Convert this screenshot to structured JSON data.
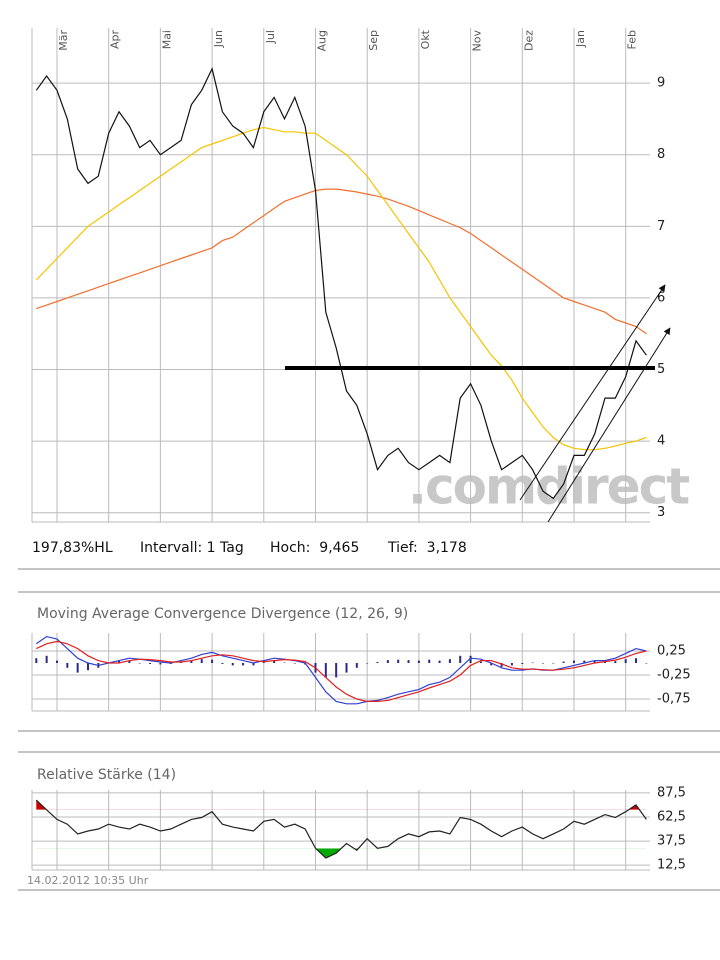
{
  "chart_data": [
    {
      "type": "line",
      "categories": [
        null,
        null,
        "Mär",
        null,
        null,
        null,
        null,
        "Apr",
        null,
        null,
        null,
        null,
        "Mai",
        null,
        null,
        null,
        null,
        "Jun",
        null,
        null,
        null,
        null,
        "Jul",
        null,
        null,
        null,
        null,
        "Aug",
        null,
        null,
        null,
        null,
        "Sep",
        null,
        null,
        null,
        null,
        "Okt",
        null,
        null,
        null,
        null,
        "Nov",
        null,
        null,
        null,
        null,
        "Dez",
        null,
        null,
        null,
        null,
        "Jan",
        null,
        null,
        null,
        null,
        "Feb",
        null,
        null
      ],
      "series": [
        {
          "color": "#f07030",
          "values": [
            5.85,
            5.9,
            5.95,
            6.0,
            6.05,
            6.1,
            6.15,
            6.2,
            6.25,
            6.3,
            6.35,
            6.4,
            6.45,
            6.5,
            6.55,
            6.6,
            6.65,
            6.7,
            6.8,
            6.85,
            6.95,
            7.05,
            7.15,
            7.25,
            7.35,
            7.4,
            7.45,
            7.5,
            7.52,
            7.52,
            7.5,
            7.48,
            7.45,
            7.42,
            7.38,
            7.33,
            7.28,
            7.22,
            7.16,
            7.1,
            7.04,
            6.98,
            6.9,
            6.8,
            6.7,
            6.6,
            6.5,
            6.4,
            6.3,
            6.2,
            6.1,
            6.0,
            5.95,
            5.9,
            5.85,
            5.8,
            5.7,
            5.65,
            5.6,
            5.5
          ]
        },
        {
          "color": "#f5c400",
          "values": [
            6.25,
            6.4,
            6.55,
            6.7,
            6.85,
            7.0,
            7.1,
            7.2,
            7.3,
            7.4,
            7.5,
            7.6,
            7.7,
            7.8,
            7.9,
            8.0,
            8.1,
            8.15,
            8.2,
            8.25,
            8.3,
            8.35,
            8.38,
            8.35,
            8.32,
            8.32,
            8.3,
            8.3,
            8.2,
            8.1,
            8.0,
            7.85,
            7.7,
            7.5,
            7.3,
            7.1,
            6.9,
            6.7,
            6.5,
            6.25,
            6.0,
            5.8,
            5.6,
            5.4,
            5.2,
            5.05,
            4.85,
            4.6,
            4.4,
            4.2,
            4.05,
            3.95,
            3.9,
            3.88,
            3.88,
            3.9,
            3.93,
            3.97,
            4.0,
            4.05
          ]
        },
        {
          "color": "#111111",
          "values": [
            8.9,
            9.1,
            8.9,
            8.5,
            7.8,
            7.6,
            7.7,
            8.3,
            8.6,
            8.4,
            8.1,
            8.2,
            8.0,
            8.1,
            8.2,
            8.7,
            8.9,
            9.2,
            8.6,
            8.4,
            8.3,
            8.1,
            8.6,
            8.8,
            8.5,
            8.8,
            8.4,
            7.5,
            5.8,
            5.3,
            4.7,
            4.5,
            4.1,
            3.6,
            3.8,
            3.9,
            3.7,
            3.6,
            3.7,
            3.8,
            3.7,
            4.6,
            4.8,
            4.5,
            4.0,
            3.6,
            3.7,
            3.8,
            3.6,
            3.3,
            3.2,
            3.4,
            3.8,
            3.8,
            4.1,
            4.6,
            4.6,
            4.9,
            5.4,
            5.2
          ]
        }
      ],
      "ylim": [
        2.87,
        9.77
      ],
      "yticks": [
        3,
        4,
        5,
        6,
        7,
        8,
        9
      ],
      "grid": true,
      "watermark": ".comdirect",
      "info": [
        "197,83%HL",
        "Intervall: 1 Tag",
        "Hoch:  9,465",
        "Tief:  3,178"
      ]
    },
    {
      "type": "line",
      "title": "Moving Average Convergence Divergence (12, 26, 9)",
      "series": [
        {
          "type": "bar",
          "color": "#2a2a8a",
          "values": [
            0.1,
            0.15,
            0.05,
            -0.1,
            -0.2,
            -0.15,
            -0.1,
            0.0,
            0.05,
            0.05,
            0.0,
            -0.02,
            -0.03,
            -0.02,
            0.03,
            0.05,
            0.08,
            0.07,
            -0.02,
            -0.05,
            -0.05,
            -0.05,
            0.02,
            0.05,
            0.01,
            -0.01,
            -0.03,
            -0.2,
            -0.3,
            -0.3,
            -0.2,
            -0.1,
            0.0,
            0.02,
            0.06,
            0.07,
            0.06,
            0.05,
            0.07,
            0.05,
            0.08,
            0.15,
            0.15,
            0.03,
            -0.05,
            -0.08,
            -0.05,
            -0.02,
            0.01,
            -0.01,
            0.0,
            0.03,
            0.05,
            0.05,
            0.05,
            0.02,
            0.04,
            0.08,
            0.1,
            0.0
          ]
        },
        {
          "color": "#3040d0",
          "values": [
            0.4,
            0.55,
            0.5,
            0.3,
            0.1,
            0.0,
            -0.05,
            0.0,
            0.05,
            0.1,
            0.08,
            0.05,
            0.02,
            0.0,
            0.05,
            0.1,
            0.18,
            0.22,
            0.15,
            0.1,
            0.05,
            0.0,
            0.05,
            0.1,
            0.08,
            0.05,
            0.0,
            -0.3,
            -0.6,
            -0.8,
            -0.85,
            -0.85,
            -0.8,
            -0.78,
            -0.72,
            -0.65,
            -0.6,
            -0.55,
            -0.45,
            -0.4,
            -0.3,
            -0.1,
            0.1,
            0.08,
            0.0,
            -0.1,
            -0.15,
            -0.15,
            -0.12,
            -0.15,
            -0.15,
            -0.1,
            -0.05,
            0.0,
            0.05,
            0.05,
            0.1,
            0.2,
            0.3,
            0.25
          ]
        },
        {
          "color": "#e02020",
          "values": [
            0.3,
            0.4,
            0.45,
            0.4,
            0.3,
            0.15,
            0.05,
            0.0,
            0.0,
            0.05,
            0.08,
            0.07,
            0.05,
            0.02,
            0.02,
            0.05,
            0.1,
            0.15,
            0.17,
            0.15,
            0.1,
            0.05,
            0.03,
            0.05,
            0.07,
            0.06,
            0.03,
            -0.1,
            -0.3,
            -0.5,
            -0.65,
            -0.75,
            -0.8,
            -0.8,
            -0.78,
            -0.72,
            -0.66,
            -0.6,
            -0.52,
            -0.45,
            -0.38,
            -0.25,
            -0.05,
            0.05,
            0.05,
            -0.02,
            -0.1,
            -0.13,
            -0.13,
            -0.14,
            -0.15,
            -0.13,
            -0.1,
            -0.05,
            0.0,
            0.03,
            0.06,
            0.12,
            0.2,
            0.25
          ]
        }
      ],
      "ylim": [
        -1.0,
        0.625
      ],
      "yticks": [
        {
          "value": 0.25,
          "label": "0,25"
        },
        {
          "value": -0.25,
          "label": "-0,25"
        },
        {
          "value": -0.75,
          "label": "-0,75"
        }
      ],
      "grid": true
    },
    {
      "type": "line",
      "title": "Relative Stärke (14)",
      "timestamp": "14.02.2012 10:35 Uhr",
      "series": [
        {
          "color": "#222222",
          "fill_above": 70,
          "fill_above_color": "#cc0000",
          "fill_below": 30,
          "fill_below_color": "#00aa00",
          "values": [
            80,
            70,
            60,
            55,
            45,
            48,
            50,
            55,
            52,
            50,
            55,
            52,
            48,
            50,
            55,
            60,
            62,
            68,
            55,
            52,
            50,
            48,
            58,
            60,
            52,
            55,
            50,
            30,
            20,
            25,
            35,
            28,
            40,
            30,
            32,
            40,
            45,
            42,
            47,
            48,
            45,
            62,
            60,
            55,
            48,
            42,
            48,
            52,
            45,
            40,
            45,
            50,
            58,
            55,
            60,
            65,
            62,
            68,
            75,
            60
          ]
        }
      ],
      "ylim": [
        7.5,
        90.5
      ],
      "yticks": [
        {
          "value": 87.5,
          "label": "87,5"
        },
        {
          "value": 62.5,
          "label": "62,5"
        },
        {
          "value": 37.5,
          "label": "37,5"
        },
        {
          "value": 12.5,
          "label": "12,5"
        }
      ],
      "grid": true
    }
  ]
}
